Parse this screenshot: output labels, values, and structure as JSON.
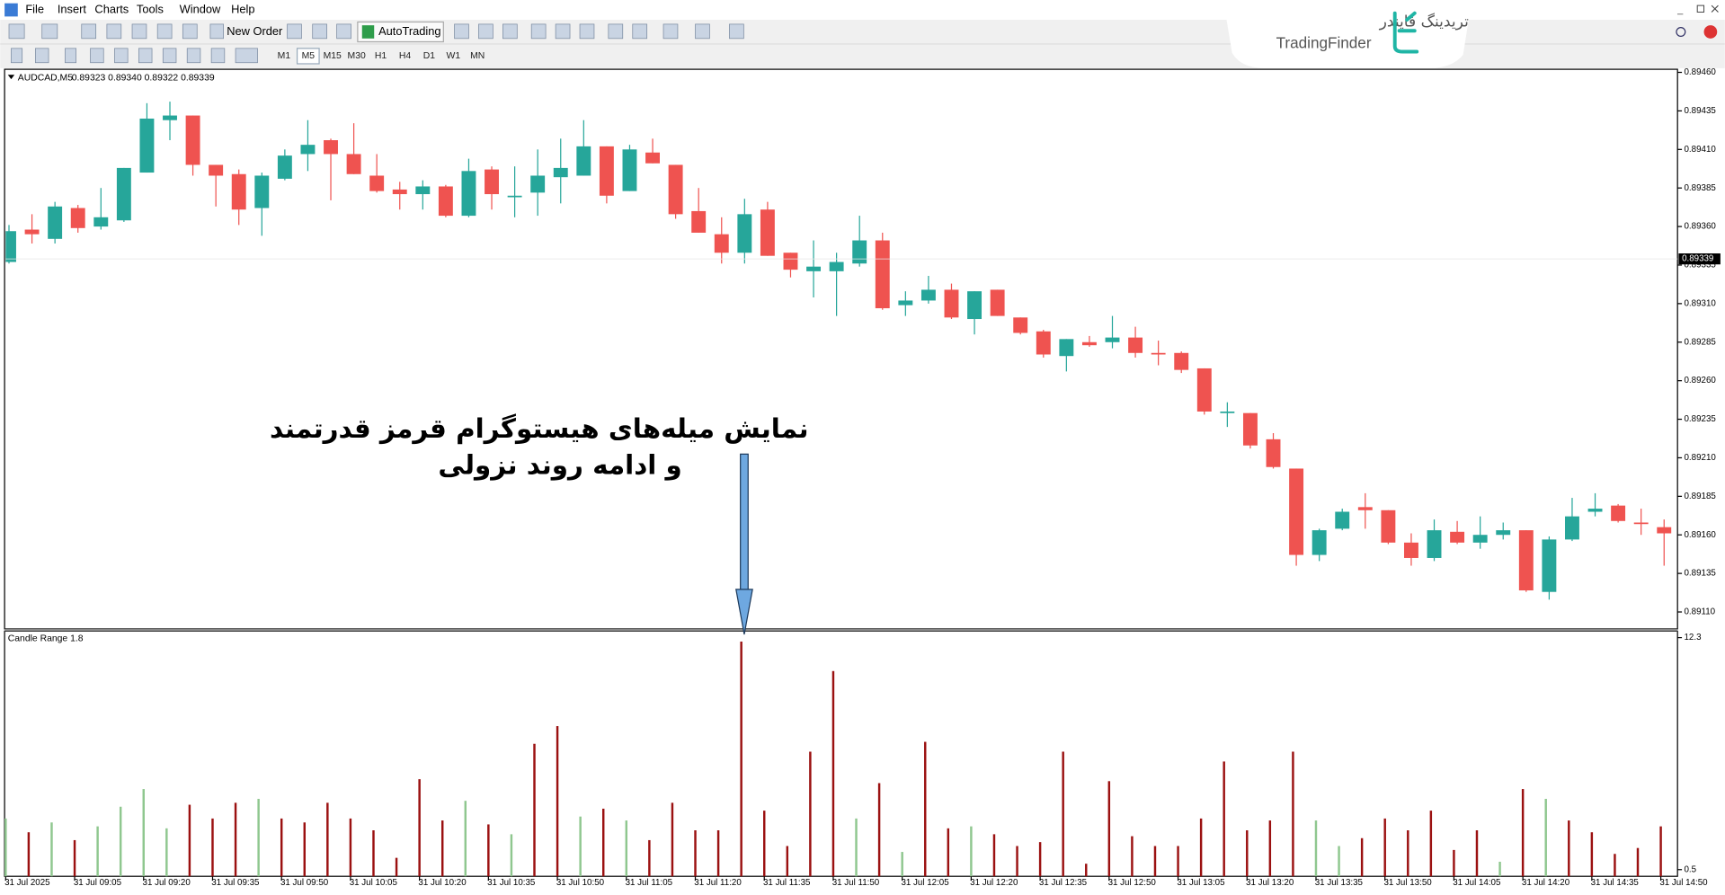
{
  "menu": [
    "File",
    "Insert",
    "Charts",
    "Tools",
    "Window",
    "Help"
  ],
  "toolbar": {
    "new_order": "New Order",
    "auto_trading": "AutoTrading",
    "timeframes": [
      "M1",
      "M5",
      "M15",
      "M30",
      "H1",
      "H4",
      "D1",
      "W1",
      "MN"
    ]
  },
  "logo": {
    "persian": "تریدینگ فایندر",
    "latin": "TradingFinder"
  },
  "annotation": {
    "lines": [
      "نمایش میله‌های هیستوگرام قرمز قدرتمند",
      "و ادامه روند نزولی"
    ]
  },
  "chart_data": [
    {
      "type": "candlestick",
      "title": "AUDCAD,M5",
      "ohlc_label": "0.89323 0.89340 0.89322 0.89339",
      "last_price": {
        "value": 0.89339,
        "label": "0.89339"
      },
      "up_color": "#26a69a",
      "down_color": "#ef5350",
      "categories": [
        "31 Jul 2025",
        null,
        null,
        "31 Jul 09:05",
        null,
        null,
        "31 Jul 09:20",
        null,
        null,
        "31 Jul 09:35",
        null,
        null,
        "31 Jul 09:50",
        null,
        null,
        "31 Jul 10:05",
        null,
        null,
        "31 Jul 10:20",
        null,
        null,
        "31 Jul 10:35",
        null,
        null,
        "31 Jul 10:50",
        null,
        null,
        "31 Jul 11:05",
        null,
        null,
        "31 Jul 11:20",
        null,
        null,
        "31 Jul 11:35",
        null,
        null,
        "31 Jul 11:50",
        null,
        null,
        "31 Jul 12:05",
        null,
        null,
        "31 Jul 12:20",
        null,
        null,
        "31 Jul 12:35",
        null,
        null,
        "31 Jul 12:50",
        null,
        null,
        "31 Jul 13:05",
        null,
        null,
        "31 Jul 13:20",
        null,
        null,
        "31 Jul 13:35",
        null,
        null,
        "31 Jul 13:50",
        null,
        null,
        "31 Jul 14:05",
        null,
        null,
        "31 Jul 14:20",
        null,
        null,
        "31 Jul 14:35",
        null,
        null,
        "31 Jul 14:50"
      ],
      "open": [
        0.89337,
        0.89358,
        0.89352,
        0.89372,
        0.8936,
        0.89364,
        0.89395,
        0.89429,
        0.89432,
        0.894,
        0.89394,
        0.89372,
        0.89391,
        0.89407,
        0.89416,
        0.89407,
        0.89393,
        0.89384,
        0.89381,
        0.89386,
        0.89367,
        0.89397,
        0.89379,
        0.89382,
        0.89392,
        0.89393,
        0.89412,
        0.89383,
        0.89408,
        0.894,
        0.8937,
        0.89355,
        0.89343,
        0.89371,
        0.89343,
        0.89331,
        0.89331,
        0.89336,
        0.89351,
        0.89309,
        0.89312,
        0.89319,
        0.893,
        0.89319,
        0.89301,
        0.89292,
        0.89276,
        0.89285,
        0.89285,
        0.89288,
        0.89278,
        0.89278,
        0.89268,
        0.89239,
        0.89239,
        0.89222,
        0.89203,
        0.89147,
        0.89164,
        0.89178,
        0.89176,
        0.89155,
        0.89145,
        0.89162,
        0.89155,
        0.8916,
        0.89163,
        0.89123,
        0.89157,
        0.89175,
        0.89179,
        0.89168,
        0.89165
      ],
      "high": [
        0.89361,
        0.89368,
        0.89376,
        0.89374,
        0.89385,
        0.89398,
        0.8944,
        0.89441,
        0.89432,
        0.894,
        0.89397,
        0.89395,
        0.8941,
        0.89429,
        0.89417,
        0.89427,
        0.89407,
        0.89389,
        0.8939,
        0.89387,
        0.89404,
        0.89399,
        0.89399,
        0.8941,
        0.89417,
        0.89429,
        0.89412,
        0.89413,
        0.89417,
        0.894,
        0.89385,
        0.89366,
        0.89378,
        0.89376,
        0.89343,
        0.89351,
        0.89343,
        0.89367,
        0.89356,
        0.89318,
        0.89328,
        0.89323,
        0.89318,
        0.89319,
        0.89301,
        0.89293,
        0.89287,
        0.89289,
        0.89302,
        0.89295,
        0.89286,
        0.89279,
        0.89268,
        0.89246,
        0.89239,
        0.89226,
        0.89203,
        0.89164,
        0.89177,
        0.89187,
        0.89176,
        0.89161,
        0.8917,
        0.89169,
        0.89172,
        0.89168,
        0.89163,
        0.89159,
        0.89184,
        0.89187,
        0.8918,
        0.89177,
        0.8917
      ],
      "low": [
        0.89336,
        0.89349,
        0.89349,
        0.89356,
        0.89358,
        0.89363,
        0.89395,
        0.89416,
        0.89393,
        0.89373,
        0.89361,
        0.89354,
        0.8939,
        0.89396,
        0.89377,
        0.89394,
        0.89382,
        0.89371,
        0.89371,
        0.89366,
        0.89366,
        0.89371,
        0.89366,
        0.89367,
        0.89375,
        0.89393,
        0.89375,
        0.89383,
        0.89401,
        0.89365,
        0.89356,
        0.89336,
        0.89336,
        0.89341,
        0.89327,
        0.89314,
        0.89302,
        0.89334,
        0.89306,
        0.89302,
        0.8931,
        0.893,
        0.8929,
        0.89302,
        0.8929,
        0.89275,
        0.89266,
        0.89282,
        0.89281,
        0.89275,
        0.8927,
        0.89265,
        0.89238,
        0.8923,
        0.89216,
        0.89203,
        0.8914,
        0.89143,
        0.89163,
        0.89164,
        0.89154,
        0.8914,
        0.89143,
        0.89154,
        0.89151,
        0.89157,
        0.89123,
        0.89118,
        0.89156,
        0.89172,
        0.89168,
        0.8916,
        0.8914
      ],
      "close": [
        0.89357,
        0.89355,
        0.89373,
        0.89359,
        0.89366,
        0.89398,
        0.8943,
        0.89432,
        0.894,
        0.89393,
        0.89371,
        0.89393,
        0.89406,
        0.89413,
        0.89407,
        0.89394,
        0.89383,
        0.89381,
        0.89386,
        0.89367,
        0.89396,
        0.89381,
        0.8938,
        0.89393,
        0.89398,
        0.89412,
        0.8938,
        0.8941,
        0.89401,
        0.89368,
        0.89356,
        0.89343,
        0.89368,
        0.89341,
        0.89332,
        0.89334,
        0.89337,
        0.89351,
        0.89307,
        0.89312,
        0.89319,
        0.89301,
        0.89318,
        0.89302,
        0.89291,
        0.89277,
        0.89287,
        0.89283,
        0.89288,
        0.89278,
        0.89277,
        0.89267,
        0.8924,
        0.8924,
        0.89218,
        0.89204,
        0.89147,
        0.89163,
        0.89175,
        0.89176,
        0.89155,
        0.89145,
        0.89163,
        0.89155,
        0.8916,
        0.89163,
        0.89124,
        0.89157,
        0.89172,
        0.89177,
        0.89169,
        0.89167,
        0.89161
      ],
      "ylim": [
        0.89099,
        0.89462
      ],
      "yticks": [
        {
          "value": 0.8946,
          "label": "0.89460"
        },
        {
          "value": 0.89435,
          "label": "0.89435"
        },
        {
          "value": 0.8941,
          "label": "0.89410"
        },
        {
          "value": 0.89385,
          "label": "0.89385"
        },
        {
          "value": 0.8936,
          "label": "0.89360"
        },
        {
          "value": 0.89335,
          "label": "0.89335"
        },
        {
          "value": 0.8931,
          "label": "0.89310"
        },
        {
          "value": 0.89285,
          "label": "0.89285"
        },
        {
          "value": 0.8926,
          "label": "0.89260"
        },
        {
          "value": 0.89235,
          "label": "0.89235"
        },
        {
          "value": 0.8921,
          "label": "0.89210"
        },
        {
          "value": 0.89185,
          "label": "0.89185"
        },
        {
          "value": 0.8916,
          "label": "0.89160"
        },
        {
          "value": 0.89135,
          "label": "0.89135"
        },
        {
          "value": 0.8911,
          "label": "0.89110"
        }
      ]
    },
    {
      "type": "bar",
      "title": "Candle Range 1.8",
      "values": [
        3.1,
        2.4,
        2.9,
        2.0,
        2.7,
        3.7,
        4.6,
        2.6,
        3.8,
        3.1,
        3.9,
        4.1,
        3.1,
        2.9,
        3.9,
        3.1,
        2.5,
        1.1,
        5.1,
        3.0,
        4.0,
        2.8,
        2.3,
        6.9,
        7.8,
        3.2,
        3.6,
        3.0,
        2.0,
        3.9,
        2.5,
        2.5,
        12.1,
        3.5,
        1.7,
        6.5,
        10.6,
        3.1,
        4.9,
        1.4,
        7.0,
        2.6,
        2.7,
        2.3,
        1.7,
        1.9,
        6.5,
        0.8,
        5.0,
        2.2,
        1.7,
        1.7,
        3.1,
        6.0,
        2.5,
        3.0,
        6.5,
        3.0,
        1.7,
        2.1,
        3.1,
        2.5,
        3.5,
        1.5,
        2.5,
        0.9,
        4.6,
        4.1,
        3.0,
        2.4,
        1.3,
        1.6,
        2.7
      ],
      "bar_colors": [
        "#8fc78f",
        "#9b1111",
        "#8fc78f",
        "#9b1111",
        "#8fc78f",
        "#8fc78f",
        "#8fc78f",
        "#8fc78f",
        "#9b1111",
        "#9b1111",
        "#9b1111",
        "#8fc78f",
        "#9b1111",
        "#9b1111",
        "#9b1111",
        "#9b1111",
        "#9b1111",
        "#9b1111",
        "#9b1111",
        "#9b1111",
        "#8fc78f",
        "#9b1111",
        "#8fc78f",
        "#9b1111",
        "#9b1111",
        "#8fc78f",
        "#9b1111",
        "#8fc78f",
        "#9b1111",
        "#9b1111",
        "#9b1111",
        "#9b1111",
        "#9b1111",
        "#9b1111",
        "#9b1111",
        "#9b1111",
        "#9b1111",
        "#8fc78f",
        "#9b1111",
        "#8fc78f",
        "#9b1111",
        "#9b1111",
        "#8fc78f",
        "#9b1111",
        "#9b1111",
        "#9b1111",
        "#9b1111",
        "#9b1111",
        "#9b1111",
        "#9b1111",
        "#9b1111",
        "#9b1111",
        "#9b1111",
        "#9b1111",
        "#9b1111",
        "#9b1111",
        "#9b1111",
        "#8fc78f",
        "#8fc78f",
        "#9b1111",
        "#9b1111",
        "#9b1111",
        "#9b1111",
        "#9b1111",
        "#9b1111",
        "#8fc78f",
        "#9b1111",
        "#8fc78f",
        "#9b1111",
        "#9b1111",
        "#9b1111",
        "#9b1111",
        "#9b1111"
      ],
      "ylim": [
        0.16,
        12.52
      ],
      "yticks": [
        12.3,
        0.5
      ]
    }
  ]
}
